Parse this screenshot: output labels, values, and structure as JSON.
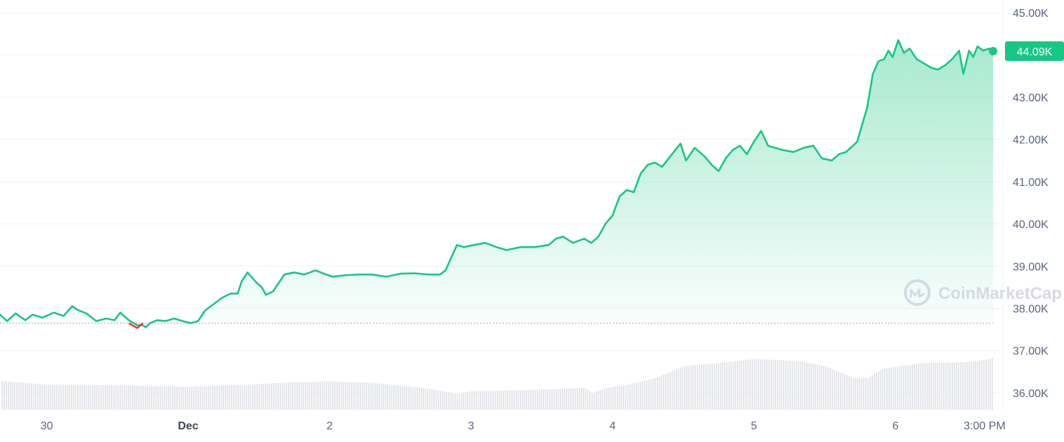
{
  "colors": {
    "line": "#16c784",
    "down": "#ea3943",
    "area_top": "#16c784",
    "grid": "#eff2f5",
    "volume": "#e4e6ea",
    "watermark": "#d3d7df",
    "baseline": "#8a919e"
  },
  "watermark": {
    "icon": "coinmarketcap-logo-icon",
    "text": "CoinMarketCap"
  },
  "chart_data": {
    "type": "area",
    "title": "",
    "xlabel": "",
    "ylabel": "",
    "ylim": [
      35600,
      45300
    ],
    "y_ticks": [
      "45.00K",
      "44.00K",
      "43.00K",
      "42.00K",
      "41.00K",
      "40.00K",
      "39.00K",
      "38.00K",
      "37.00K",
      "36.00K"
    ],
    "y_tick_values": [
      45000,
      44000,
      43000,
      42000,
      41000,
      40000,
      39000,
      38000,
      37000,
      36000
    ],
    "x_range_days": [
      29.67,
      36.69
    ],
    "x_ticks": [
      {
        "label": "30",
        "x": 30.0,
        "bold": false
      },
      {
        "label": "Dec",
        "x": 31.0,
        "bold": true
      },
      {
        "label": "2",
        "x": 32.0,
        "bold": false
      },
      {
        "label": "3",
        "x": 33.0,
        "bold": false
      },
      {
        "label": "4",
        "x": 34.0,
        "bold": false
      },
      {
        "label": "5",
        "x": 35.0,
        "bold": false
      },
      {
        "label": "6",
        "x": 36.0,
        "bold": false
      },
      {
        "label": "3:00 PM",
        "x": 36.63,
        "bold": false
      }
    ],
    "baseline_value": 37650,
    "current_price_label": "44.09K",
    "current_price": 44090,
    "grid": true,
    "series": [
      {
        "values_x": [
          29.67,
          29.72,
          29.78,
          29.85,
          29.9,
          29.97,
          30.05,
          30.12,
          30.18,
          30.22,
          30.28,
          30.35,
          30.42,
          30.48,
          30.52,
          30.58,
          30.64,
          30.68,
          30.7,
          30.73,
          30.78,
          30.84,
          30.9,
          30.96,
          31.02,
          31.07,
          31.12,
          31.18,
          31.24,
          31.3,
          31.35,
          31.38,
          31.42,
          31.48,
          31.52,
          31.55,
          31.6,
          31.68,
          31.75,
          31.82,
          31.9,
          31.96,
          32.02,
          32.1,
          32.2,
          32.3,
          32.4,
          32.5,
          32.6,
          32.7,
          32.78,
          32.82,
          32.86,
          32.9,
          32.95,
          33.02,
          33.1,
          33.18,
          33.25,
          33.35,
          33.45,
          33.55,
          33.6,
          33.65,
          33.72,
          33.8,
          33.85,
          33.9,
          33.95,
          34.0,
          34.05,
          34.1,
          34.15,
          34.2,
          34.25,
          34.3,
          34.35,
          34.42,
          34.48,
          34.52,
          34.58,
          34.65,
          34.7,
          34.75,
          34.8,
          34.85,
          34.9,
          34.95,
          35.0,
          35.05,
          35.1,
          35.15,
          35.2,
          35.28,
          35.35,
          35.42,
          35.48,
          35.55,
          35.6,
          35.65,
          35.7,
          35.73,
          35.76,
          35.8,
          35.84,
          35.88,
          35.92,
          35.95,
          35.98,
          36.02,
          36.06,
          36.1,
          36.15,
          36.2,
          36.25,
          36.3,
          36.35,
          36.4,
          36.45,
          36.48,
          36.52,
          36.55,
          36.58,
          36.62,
          36.66,
          36.69
        ],
        "values": [
          37850,
          37700,
          37880,
          37720,
          37850,
          37780,
          37900,
          37820,
          38050,
          37960,
          37880,
          37700,
          37760,
          37720,
          37900,
          37720,
          37600,
          37600,
          37550,
          37650,
          37720,
          37700,
          37760,
          37700,
          37650,
          37700,
          37950,
          38100,
          38250,
          38350,
          38350,
          38650,
          38850,
          38620,
          38500,
          38320,
          38400,
          38800,
          38850,
          38800,
          38900,
          38820,
          38750,
          38780,
          38800,
          38800,
          38750,
          38820,
          38830,
          38800,
          38800,
          38900,
          39200,
          39500,
          39450,
          39500,
          39550,
          39450,
          39380,
          39450,
          39450,
          39500,
          39650,
          39700,
          39550,
          39650,
          39550,
          39700,
          40000,
          40200,
          40650,
          40800,
          40750,
          41200,
          41400,
          41450,
          41350,
          41650,
          41900,
          41500,
          41800,
          41600,
          41400,
          41250,
          41550,
          41750,
          41850,
          41650,
          41950,
          42200,
          41850,
          41800,
          41750,
          41700,
          41800,
          41850,
          41550,
          41500,
          41650,
          41700,
          41850,
          41950,
          42300,
          42750,
          43550,
          43850,
          43900,
          44100,
          43950,
          44350,
          44050,
          44150,
          43900,
          43800,
          43700,
          43650,
          43750,
          43900,
          44100,
          43550,
          44100,
          43950,
          44200,
          44100,
          44150,
          44090
        ]
      }
    ],
    "volume": {
      "x": [
        29.67,
        30.0,
        30.5,
        31.0,
        31.4,
        31.75,
        32.0,
        32.3,
        32.7,
        32.9,
        33.0,
        33.4,
        33.8,
        33.85,
        33.95,
        34.1,
        34.3,
        34.5,
        34.75,
        35.0,
        35.3,
        35.5,
        35.7,
        35.8,
        35.9,
        36.2,
        36.5,
        36.69
      ],
      "values": [
        0.44,
        0.38,
        0.37,
        0.35,
        0.38,
        0.42,
        0.43,
        0.41,
        0.32,
        0.24,
        0.28,
        0.3,
        0.33,
        0.25,
        0.33,
        0.38,
        0.48,
        0.66,
        0.71,
        0.77,
        0.74,
        0.66,
        0.48,
        0.48,
        0.62,
        0.71,
        0.72,
        0.78
      ]
    }
  }
}
